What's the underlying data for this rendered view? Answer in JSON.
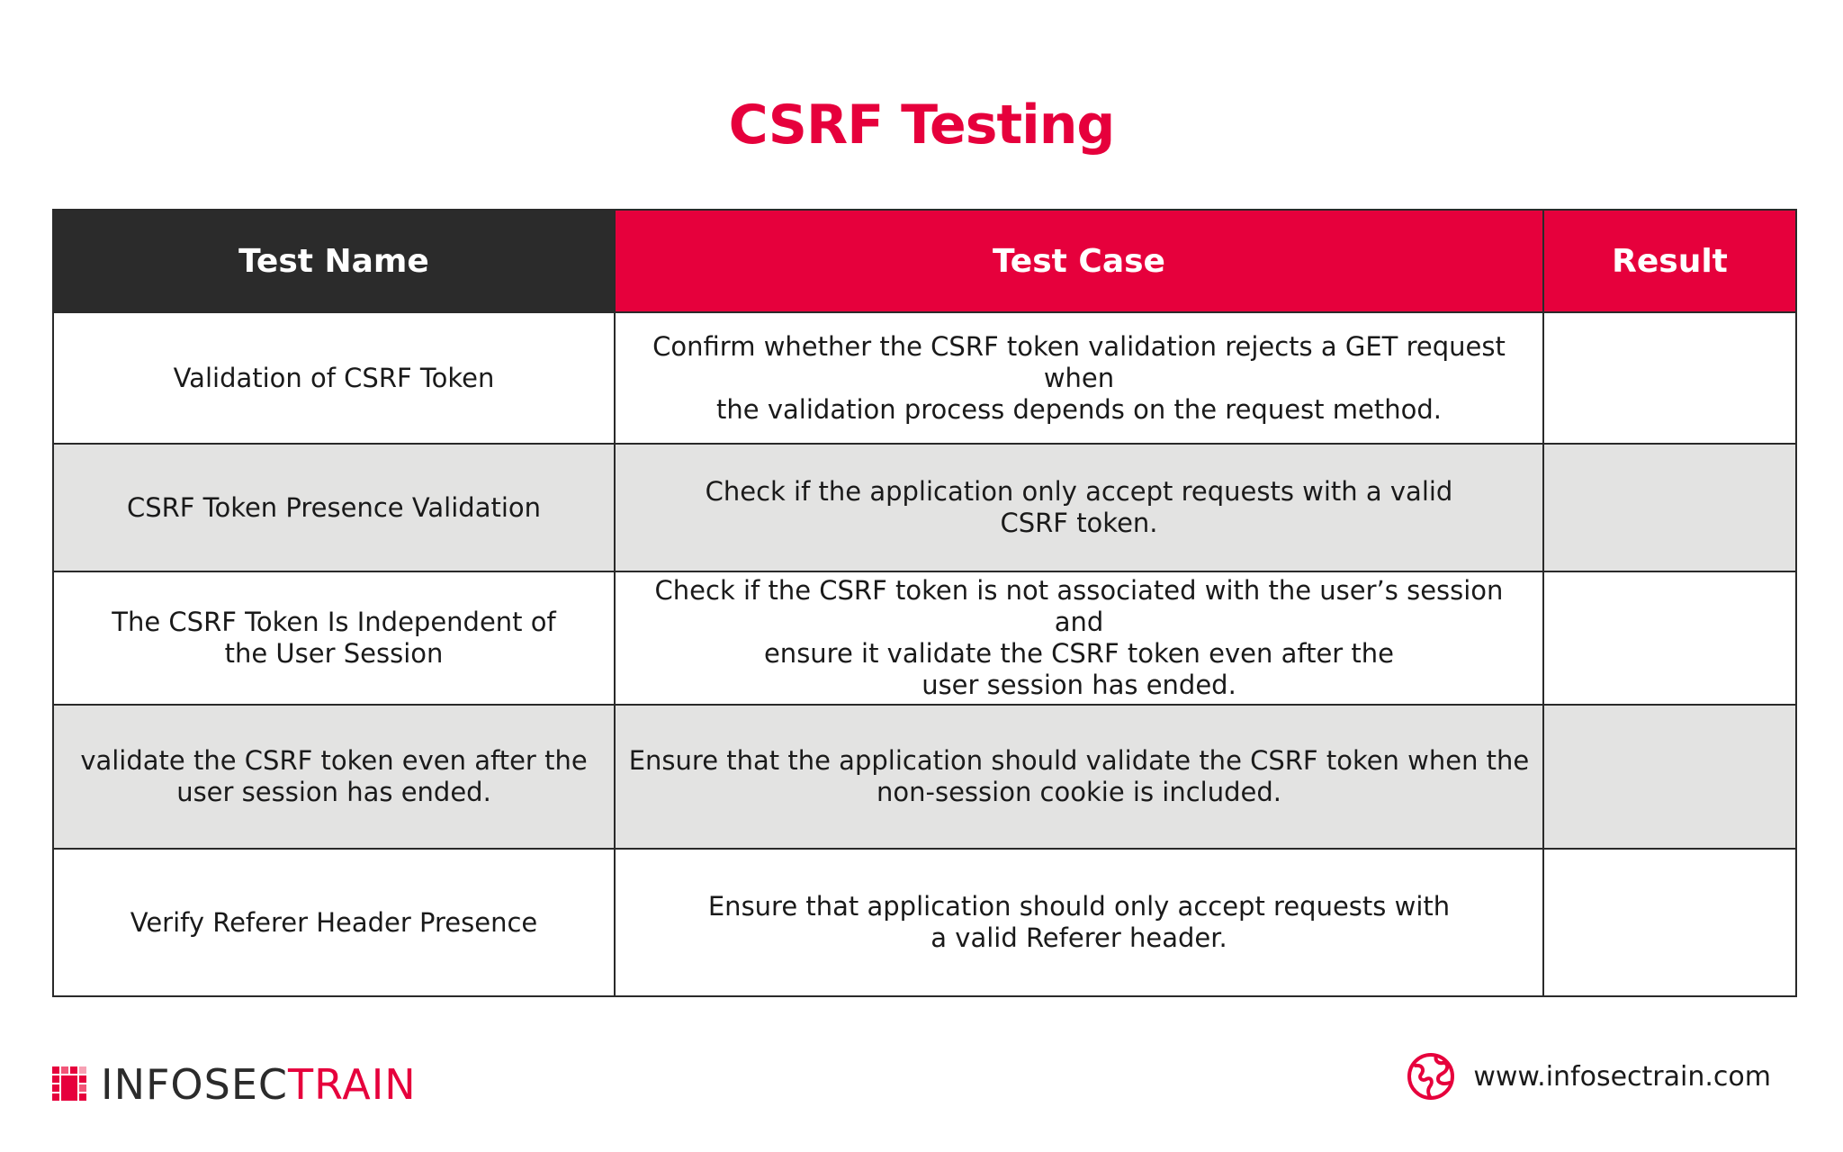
{
  "page": {
    "title": "CSRF Testing",
    "accent_color": "#e6003c",
    "dark_color": "#2b2b2b",
    "row_alt_color": "#e3e3e2"
  },
  "table": {
    "headers": {
      "name": "Test Name",
      "case": "Test Case",
      "result": "Result"
    },
    "rows": [
      {
        "name": [
          "Validation of CSRF Token"
        ],
        "case": [
          "Confirm whether the CSRF token validation rejects a GET request when",
          "the validation process depends on the request method."
        ],
        "result": ""
      },
      {
        "name": [
          "CSRF Token Presence Validation"
        ],
        "case": [
          "Check if the application only accept requests with a valid",
          "CSRF token."
        ],
        "result": ""
      },
      {
        "name": [
          "The CSRF Token Is Independent of",
          "the User Session"
        ],
        "case": [
          "Check if the CSRF token is not associated with the user’s session and",
          "ensure it validate the CSRF token even after the",
          "user session has ended."
        ],
        "result": ""
      },
      {
        "name": [
          "validate the CSRF token even after the",
          "user session has ended."
        ],
        "case": [
          "Ensure that the application should validate the CSRF token when the",
          "non-session cookie is included."
        ],
        "result": ""
      },
      {
        "name": [
          "Verify Referer Header Presence"
        ],
        "case": [
          "Ensure that application should only accept requests with",
          "a valid Referer header."
        ],
        "result": ""
      }
    ]
  },
  "footer": {
    "logo_icon": "infosectrain-logo-icon",
    "brand_part1": "INFOSEC",
    "brand_part2": "TRAIN",
    "web_icon": "globe-icon",
    "website": "www.infosectrain.com"
  }
}
